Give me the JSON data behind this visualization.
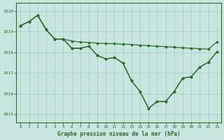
{
  "title": "Graphe pression niveau de la mer (hPa)",
  "background_color": "#c8e6df",
  "grid_color": "#9ecec7",
  "line_color": "#2d6b2d",
  "ylim": [
    1014.6,
    1020.4
  ],
  "yticks": [
    1015,
    1016,
    1017,
    1018,
    1019,
    1020
  ],
  "xlim": [
    -0.5,
    23.5
  ],
  "xticks": [
    0,
    1,
    2,
    3,
    4,
    5,
    6,
    7,
    8,
    9,
    10,
    11,
    12,
    13,
    14,
    15,
    16,
    17,
    18,
    19,
    20,
    21,
    22,
    23
  ],
  "line_flat": {
    "x": [
      0,
      1,
      2,
      3,
      4,
      5,
      6,
      7,
      8,
      9,
      10,
      11,
      12,
      13,
      14,
      15,
      16,
      17,
      18,
      19,
      20,
      21,
      22,
      23
    ],
    "y": [
      1019.3,
      1019.5,
      1019.8,
      1019.1,
      1018.65,
      1018.65,
      1018.55,
      1018.5,
      1018.48,
      1018.45,
      1018.43,
      1018.42,
      1018.4,
      1018.38,
      1018.35,
      1018.32,
      1018.3,
      1018.28,
      1018.25,
      1018.22,
      1018.2,
      1018.18,
      1018.15,
      1018.5
    ]
  },
  "line_mid": {
    "x": [
      0,
      1,
      2,
      3,
      4,
      5,
      6,
      7,
      8,
      9,
      10,
      11,
      12,
      13,
      14,
      15,
      16,
      17,
      18,
      19,
      20,
      21,
      22,
      23
    ],
    "y": [
      1019.3,
      1019.5,
      1019.8,
      1019.1,
      1018.65,
      1018.65,
      1018.2,
      1018.2,
      1018.3,
      1017.85,
      1017.68,
      1017.75,
      1017.48,
      1016.62,
      1016.1,
      1015.28,
      1015.62,
      1015.62,
      1016.1,
      1016.75,
      1016.82,
      1017.28,
      1017.52,
      1018.02
    ]
  },
  "line_bot": {
    "x": [
      0,
      1,
      2,
      3,
      4,
      5,
      6,
      7,
      8,
      9,
      10,
      11,
      12,
      13,
      14,
      15,
      16,
      17,
      18,
      19,
      20,
      21,
      22,
      23
    ],
    "y": [
      1019.3,
      1019.5,
      1019.8,
      1019.1,
      1018.65,
      1018.65,
      1018.2,
      1018.2,
      1018.3,
      1017.85,
      1017.68,
      1017.75,
      1017.48,
      1016.62,
      1016.1,
      1015.28,
      1015.62,
      1015.62,
      1016.1,
      1016.75,
      1016.82,
      1017.28,
      1017.52,
      1018.02
    ]
  }
}
